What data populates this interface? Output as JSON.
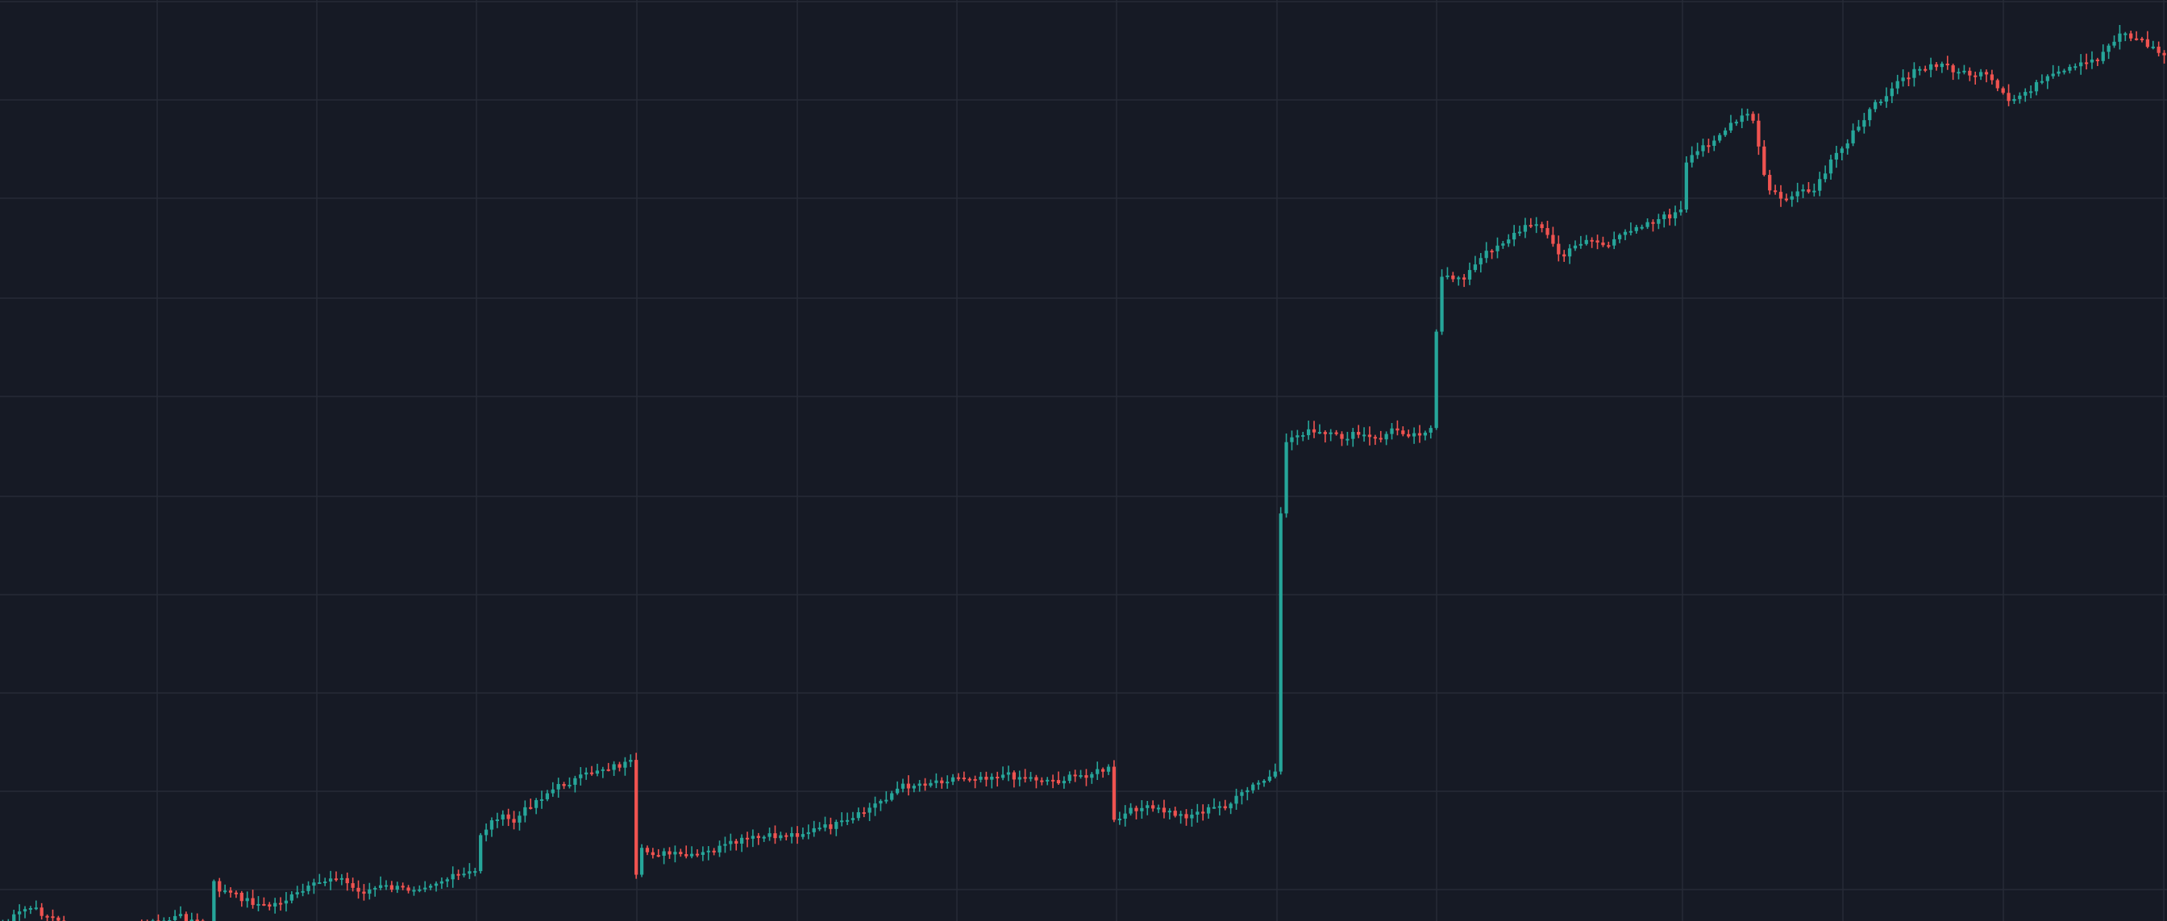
{
  "chart_data": {
    "type": "candlestick",
    "title": "",
    "xlabel": "",
    "ylabel": "",
    "grid": true,
    "legend": "none",
    "ylim": [
      0,
      1143
    ],
    "candle_count": 390,
    "colors": {
      "background": "#161a25",
      "grid": "#262b37",
      "up": "#26a69a",
      "down": "#ef5350"
    },
    "segments": [
      {
        "start": 0,
        "end": 38,
        "close_levels": [
          630,
          618,
          626,
          640,
          636,
          632,
          628,
          624,
          632
        ]
      },
      {
        "start": 38,
        "end": 39,
        "close_levels": [
          602
        ]
      },
      {
        "start": 39,
        "end": 86,
        "close_levels": [
          606,
          612,
          618,
          612,
          604,
          596,
          608,
          604,
          606,
          602,
          598,
          594
        ]
      },
      {
        "start": 86,
        "end": 114,
        "close_levels": [
          568,
          556,
          560,
          548,
          540,
          534,
          530,
          524,
          522,
          520
        ]
      },
      {
        "start": 114,
        "end": 115,
        "close_levels": [
          598
        ]
      },
      {
        "start": 115,
        "end": 200,
        "close_levels": [
          580,
          584,
          572,
          568,
          560,
          536,
          530,
          528,
          532,
          524
        ]
      },
      {
        "start": 200,
        "end": 230,
        "close_levels": [
          560,
          550,
          552,
          556,
          552,
          548,
          536,
          528
        ]
      },
      {
        "start": 230,
        "end": 231,
        "close_levels": [
          352
        ]
      },
      {
        "start": 231,
        "end": 258,
        "close_levels": [
          300,
          294,
          296,
          298,
          296,
          300,
          292,
          296,
          292
        ]
      },
      {
        "start": 258,
        "end": 259,
        "close_levels": [
          228
        ]
      },
      {
        "start": 259,
        "end": 303,
        "close_levels": [
          190,
          188,
          170,
          160,
          150,
          176,
          162,
          168,
          154,
          150,
          144
        ]
      },
      {
        "start": 303,
        "end": 333,
        "close_levels": [
          112,
          100,
          92,
          84,
          76,
          128,
          136,
          132,
          130,
          110,
          98
        ]
      },
      {
        "start": 333,
        "end": 390,
        "close_levels": [
          88,
          72,
          54,
          48,
          44,
          50,
          52,
          70,
          60,
          52,
          46,
          40,
          22,
          28,
          38
        ]
      }
    ]
  }
}
